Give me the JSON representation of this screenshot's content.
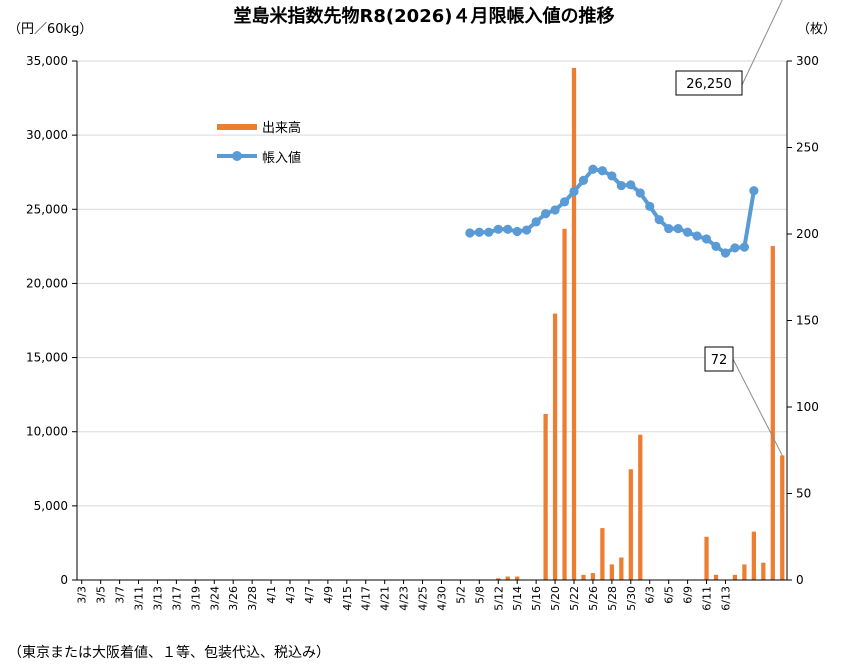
{
  "chart_data": {
    "type": "bar",
    "title": "堂島米指数先物R8(2026)４月限帳入値の推移",
    "left_unit": "（円／60kg）",
    "right_unit": "（枚）",
    "footnote": "（東京または大阪着値、１等、包装代込、税込み）",
    "left_ylim": [
      0,
      35000
    ],
    "left_ticks": [
      "0",
      "5,000",
      "10,000",
      "15,000",
      "20,000",
      "25,000",
      "30,000",
      "35,000"
    ],
    "right_ylim": [
      0,
      300
    ],
    "right_ticks": [
      "0",
      "50",
      "100",
      "150",
      "200",
      "250",
      "300"
    ],
    "x_tick_labels": [
      "3/3",
      "3/5",
      "3/7",
      "3/11",
      "3/13",
      "3/17",
      "3/19",
      "3/24",
      "3/26",
      "3/28",
      "4/1",
      "4/3",
      "4/7",
      "4/9",
      "4/15",
      "4/17",
      "4/21",
      "4/23",
      "4/25",
      "4/30",
      "5/2",
      "5/8",
      "5/12",
      "5/14",
      "5/16",
      "5/20",
      "5/22",
      "5/26",
      "5/28",
      "5/30",
      "6/3",
      "6/5",
      "6/9",
      "6/11",
      "6/13"
    ],
    "grid": true,
    "legend_position": "upper-left inside plot",
    "series": [
      {
        "name": "出来高",
        "kind": "bar",
        "axis": "right",
        "color": "#ED7D31",
        "values": [
          0,
          0,
          0,
          0,
          0,
          0,
          0,
          0,
          0,
          0,
          0,
          0,
          0,
          0,
          0,
          0,
          0,
          0,
          0,
          0,
          0,
          0,
          0,
          0,
          0,
          0,
          0,
          0,
          0,
          0,
          0,
          0,
          0,
          0,
          0,
          0,
          0,
          0,
          0,
          0,
          0,
          0,
          0,
          0,
          1,
          2,
          2,
          0,
          0,
          96,
          154,
          203,
          296,
          3,
          4,
          30,
          9,
          13,
          64,
          84,
          0,
          0,
          0,
          0,
          0,
          0,
          25,
          3,
          0,
          3,
          9,
          28,
          10,
          193,
          72
        ]
      },
      {
        "name": "帳入値",
        "kind": "line",
        "axis": "left",
        "color": "#5B9BD5",
        "values": [
          null,
          null,
          null,
          null,
          null,
          null,
          null,
          null,
          null,
          null,
          null,
          null,
          null,
          null,
          null,
          null,
          null,
          null,
          null,
          null,
          null,
          null,
          null,
          null,
          null,
          null,
          null,
          null,
          null,
          null,
          null,
          null,
          null,
          null,
          null,
          null,
          null,
          null,
          null,
          null,
          null,
          23400,
          23450,
          23450,
          23650,
          23650,
          23500,
          23600,
          24150,
          24700,
          24950,
          25500,
          26200,
          26950,
          27700,
          27600,
          27250,
          26600,
          26650,
          26100,
          25200,
          24300,
          23700,
          23700,
          23450,
          23200,
          23000,
          22500,
          22050,
          22400,
          22450,
          26250
        ]
      }
    ],
    "callouts": [
      {
        "text": "26,250",
        "series": "帳入値"
      },
      {
        "text": "72",
        "series": "出来高"
      }
    ],
    "category_count": 75
  }
}
